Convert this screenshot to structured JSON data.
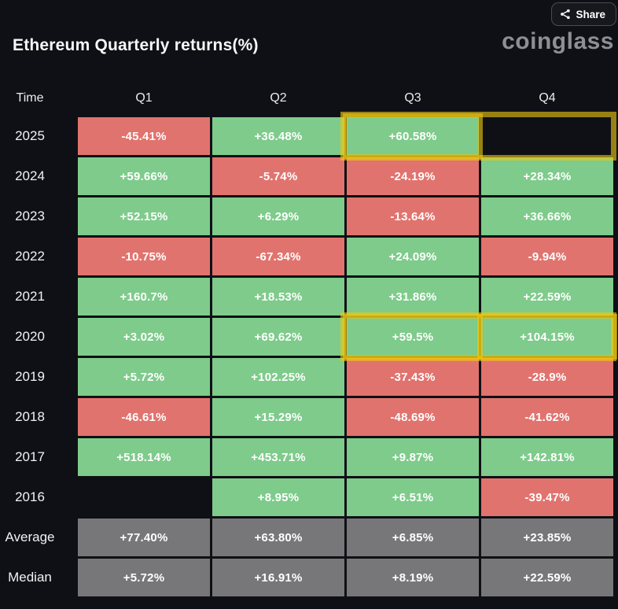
{
  "header": {
    "share_label": "Share",
    "title": "Ethereum Quarterly returns(%)",
    "brand": "coinglass"
  },
  "colors": {
    "background": "#0f1015",
    "positive": "#7ecb8b",
    "negative": "#e1736e",
    "neutral": "#77777a",
    "highlight": "rgba(235,198,18,0.62)",
    "cell_text": "#ffffff"
  },
  "chart_data": {
    "type": "heatmap",
    "title": "Ethereum Quarterly returns(%)",
    "columns": [
      "Time",
      "Q1",
      "Q2",
      "Q3",
      "Q4"
    ],
    "rows": [
      {
        "label": "2025",
        "cells": [
          {
            "value": "-45.41%",
            "type": "negative"
          },
          {
            "value": "+36.48%",
            "type": "positive"
          },
          {
            "value": "+60.58%",
            "type": "positive"
          },
          {
            "value": "",
            "type": "empty"
          }
        ]
      },
      {
        "label": "2024",
        "cells": [
          {
            "value": "+59.66%",
            "type": "positive"
          },
          {
            "value": "-5.74%",
            "type": "negative"
          },
          {
            "value": "-24.19%",
            "type": "negative"
          },
          {
            "value": "+28.34%",
            "type": "positive"
          }
        ]
      },
      {
        "label": "2023",
        "cells": [
          {
            "value": "+52.15%",
            "type": "positive"
          },
          {
            "value": "+6.29%",
            "type": "positive"
          },
          {
            "value": "-13.64%",
            "type": "negative"
          },
          {
            "value": "+36.66%",
            "type": "positive"
          }
        ]
      },
      {
        "label": "2022",
        "cells": [
          {
            "value": "-10.75%",
            "type": "negative"
          },
          {
            "value": "-67.34%",
            "type": "negative"
          },
          {
            "value": "+24.09%",
            "type": "positive"
          },
          {
            "value": "-9.94%",
            "type": "negative"
          }
        ]
      },
      {
        "label": "2021",
        "cells": [
          {
            "value": "+160.7%",
            "type": "positive"
          },
          {
            "value": "+18.53%",
            "type": "positive"
          },
          {
            "value": "+31.86%",
            "type": "positive"
          },
          {
            "value": "+22.59%",
            "type": "positive"
          }
        ]
      },
      {
        "label": "2020",
        "cells": [
          {
            "value": "+3.02%",
            "type": "positive"
          },
          {
            "value": "+69.62%",
            "type": "positive"
          },
          {
            "value": "+59.5%",
            "type": "positive"
          },
          {
            "value": "+104.15%",
            "type": "positive"
          }
        ]
      },
      {
        "label": "2019",
        "cells": [
          {
            "value": "+5.72%",
            "type": "positive"
          },
          {
            "value": "+102.25%",
            "type": "positive"
          },
          {
            "value": "-37.43%",
            "type": "negative"
          },
          {
            "value": "-28.9%",
            "type": "negative"
          }
        ]
      },
      {
        "label": "2018",
        "cells": [
          {
            "value": "-46.61%",
            "type": "negative"
          },
          {
            "value": "+15.29%",
            "type": "positive"
          },
          {
            "value": "-48.69%",
            "type": "negative"
          },
          {
            "value": "-41.62%",
            "type": "negative"
          }
        ]
      },
      {
        "label": "2017",
        "cells": [
          {
            "value": "+518.14%",
            "type": "positive"
          },
          {
            "value": "+453.71%",
            "type": "positive"
          },
          {
            "value": "+9.87%",
            "type": "positive"
          },
          {
            "value": "+142.81%",
            "type": "positive"
          }
        ]
      },
      {
        "label": "2016",
        "cells": [
          {
            "value": "",
            "type": "empty"
          },
          {
            "value": "+8.95%",
            "type": "positive"
          },
          {
            "value": "+6.51%",
            "type": "positive"
          },
          {
            "value": "-39.47%",
            "type": "negative"
          }
        ]
      },
      {
        "label": "Average",
        "cells": [
          {
            "value": "+77.40%",
            "type": "neutral"
          },
          {
            "value": "+63.80%",
            "type": "neutral"
          },
          {
            "value": "+6.85%",
            "type": "neutral"
          },
          {
            "value": "+23.85%",
            "type": "neutral"
          }
        ]
      },
      {
        "label": "Median",
        "cells": [
          {
            "value": "+5.72%",
            "type": "neutral"
          },
          {
            "value": "+16.91%",
            "type": "neutral"
          },
          {
            "value": "+8.19%",
            "type": "neutral"
          },
          {
            "value": "+22.59%",
            "type": "neutral"
          }
        ]
      }
    ],
    "highlights": [
      {
        "row": "2025",
        "outer_range": [
          "Q3",
          "Q4"
        ],
        "inner_cells": [
          "Q3"
        ]
      },
      {
        "row": "2020",
        "outer_range": [
          "Q3",
          "Q4"
        ],
        "inner_cells": [
          "Q3",
          "Q4"
        ]
      }
    ]
  }
}
